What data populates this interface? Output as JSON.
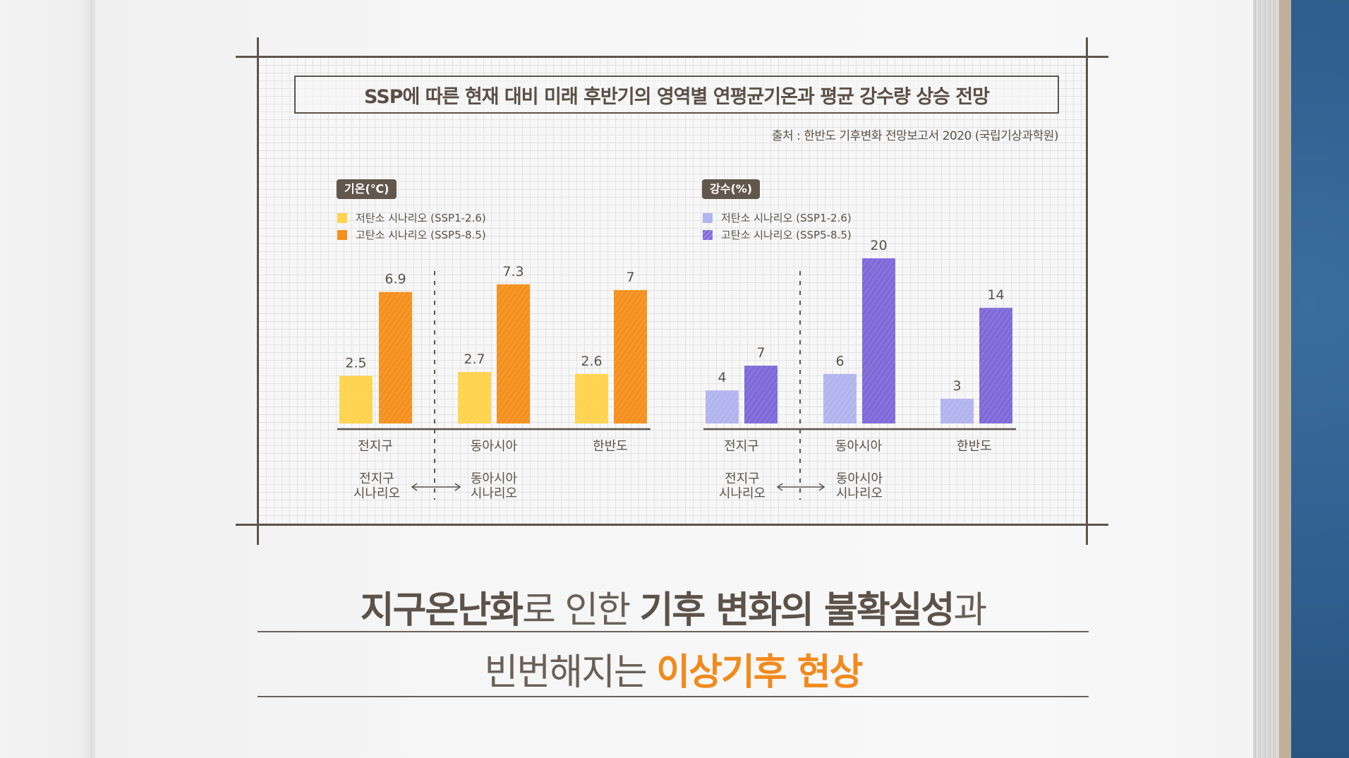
{
  "title": "SSP에 따른 현재 대비 미래 후반기의 영역별 연평균기온과 평균 강수량 상승 전망",
  "source": "출처 : 한반도 기후변화 전망보고서 2020 (국립기상과학원)",
  "headline": {
    "line1": [
      {
        "text": "지구온난화",
        "style": "strong"
      },
      {
        "text": "로 인한 ",
        "style": "light"
      },
      {
        "text": "기후 변화의 불확실성",
        "style": "strong"
      },
      {
        "text": "과",
        "style": "light"
      }
    ],
    "line2": [
      {
        "text": "빈번해지는 ",
        "style": "light"
      },
      {
        "text": "이상기후 현상",
        "style": "accent"
      }
    ]
  },
  "colors": {
    "temp_low": "#ffd34d",
    "temp_high": "#f5901e",
    "precip_low": "#b2b4ee",
    "precip_high": "#7e6ad8",
    "ink": "#5c524a",
    "accent": "#f28a1d"
  },
  "chart_data": [
    {
      "type": "bar",
      "title": "기온(℃)",
      "categories": [
        "전지구",
        "동아시아",
        "한반도"
      ],
      "series": [
        {
          "name": "저탄소 시나리오 (SSP1-2.6)",
          "values": [
            2.5,
            2.7,
            2.6
          ],
          "color": "#ffd34d"
        },
        {
          "name": "고탄소 시나리오 (SSP5-8.5)",
          "values": [
            6.9,
            7.3,
            7
          ],
          "color": "#f5901e"
        }
      ],
      "value_labels": [
        [
          "2.5",
          "2.7",
          "2.6"
        ],
        [
          "6.9",
          "7.3",
          "7"
        ]
      ],
      "ylim": [
        0,
        7.3
      ],
      "grid": false,
      "legend": "top-left",
      "annotation": {
        "left": "전지구\n시나리오",
        "right": "동아시아\n시나리오",
        "left_lines": [
          "전지구",
          "시나리오"
        ],
        "right_lines": [
          "동아시아",
          "시나리오"
        ]
      }
    },
    {
      "type": "bar",
      "title": "강수(%)",
      "categories": [
        "전지구",
        "동아시아",
        "한반도"
      ],
      "series": [
        {
          "name": "저탄소 시나리오 (SSP1-2.6)",
          "values": [
            4,
            6,
            3
          ],
          "color": "#b2b4ee"
        },
        {
          "name": "고탄소 시나리오 (SSP5-8.5)",
          "values": [
            7,
            20,
            14
          ],
          "color": "#7e6ad8"
        }
      ],
      "value_labels": [
        [
          "4",
          "6",
          "3"
        ],
        [
          "7",
          "20",
          "14"
        ]
      ],
      "ylim": [
        0,
        20
      ],
      "grid": false,
      "legend": "top-left",
      "annotation": {
        "left": "전지구\n시나리오",
        "right": "동아시아\n시나리오",
        "left_lines": [
          "전지구",
          "시나리오"
        ],
        "right_lines": [
          "동아시아",
          "시나리오"
        ]
      }
    }
  ]
}
